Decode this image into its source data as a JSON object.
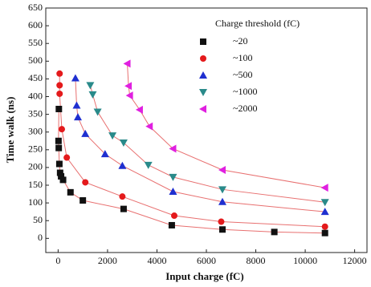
{
  "chart_data": {
    "type": "scatter",
    "xlabel": "Input charge (fC)",
    "ylabel": "Time walk (ns)",
    "legend_title": "Charge threshold (fC)",
    "legend": "upper right",
    "xlim": [
      -500,
      12500
    ],
    "ylim": [
      -40,
      650
    ],
    "xticks": [
      0,
      2000,
      4000,
      6000,
      8000,
      10000,
      12000
    ],
    "yticks": [
      0,
      50,
      100,
      150,
      200,
      250,
      300,
      350,
      400,
      450,
      500,
      550,
      600,
      650
    ],
    "fit_color": "#e87070",
    "series": [
      {
        "name": "~20",
        "color": "#111111",
        "marker": "square",
        "x": [
          30,
          15,
          25,
          50,
          80,
          120,
          200,
          500,
          1000,
          2650,
          4600,
          6650,
          8750,
          10800
        ],
        "values": [
          365,
          275,
          255,
          210,
          185,
          175,
          165,
          130,
          107,
          83,
          37,
          25,
          18,
          15
        ]
      },
      {
        "name": "~100",
        "color": "#e41a1c",
        "marker": "circle",
        "x": [
          60,
          60,
          60,
          150,
          350,
          1100,
          2600,
          4700,
          6600,
          10800
        ],
        "values": [
          465,
          432,
          408,
          308,
          228,
          158,
          118,
          64,
          47,
          33
        ]
      },
      {
        "name": "~500",
        "color": "#1f2fd0",
        "marker": "triangle-up",
        "x": [
          700,
          750,
          800,
          1100,
          1900,
          2600,
          4650,
          6650,
          10800
        ],
        "values": [
          452,
          375,
          342,
          295,
          238,
          205,
          132,
          103,
          75
        ]
      },
      {
        "name": "~1000",
        "color": "#2a8a8a",
        "marker": "triangle-down",
        "x": [
          1300,
          1400,
          1600,
          2200,
          2650,
          3650,
          4650,
          6650,
          10800
        ],
        "values": [
          432,
          406,
          357,
          290,
          270,
          207,
          173,
          138,
          102
        ]
      },
      {
        "name": "~2000",
        "color": "#e020e0",
        "marker": "triangle-left",
        "x": [
          2800,
          2850,
          2900,
          3300,
          3700,
          4650,
          6650,
          10800
        ],
        "values": [
          493,
          430,
          403,
          363,
          316,
          253,
          193,
          143
        ]
      }
    ]
  }
}
